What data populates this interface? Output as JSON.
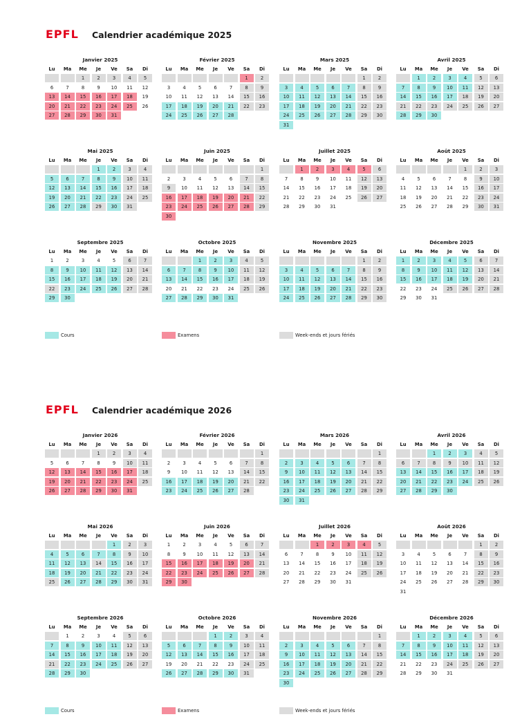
{
  "logo_text": "EPFL",
  "colors": {
    "cours": "#a5e8e5",
    "examens": "#f58d9c",
    "weekend": "#dcdcdc",
    "logo": "#e2001a"
  },
  "weekday_labels": [
    "Lu",
    "Ma",
    "Me",
    "Je",
    "Ve",
    "Sa",
    "Di"
  ],
  "legend": [
    {
      "label": "Cours",
      "type": "c"
    },
    {
      "label": "Examens",
      "type": "e"
    },
    {
      "label": "Week-ends et jours fériés",
      "type": "w"
    }
  ],
  "calendars": [
    {
      "title": "Calendrier académique  2025",
      "months": [
        {
          "name": "Janvier 2025",
          "first_weekday": 3,
          "days": 31,
          "types": {
            "c": [],
            "e": [
              13,
              14,
              15,
              16,
              17,
              18,
              20,
              21,
              22,
              23,
              24,
              25,
              27,
              28,
              29,
              30,
              31
            ],
            "w": [
              1,
              2,
              3,
              4,
              5
            ]
          }
        },
        {
          "name": "Février 2025",
          "first_weekday": 6,
          "days": 28,
          "types": {
            "c": [
              17,
              18,
              19,
              20,
              21,
              24,
              25,
              26,
              27,
              28
            ],
            "e": [
              1
            ],
            "w": [
              2,
              8,
              9,
              15,
              16,
              22,
              23
            ]
          }
        },
        {
          "name": "Mars 2025",
          "first_weekday": 6,
          "days": 31,
          "types": {
            "c": [
              3,
              4,
              5,
              6,
              7,
              10,
              11,
              12,
              13,
              14,
              17,
              18,
              19,
              20,
              21,
              24,
              25,
              26,
              27,
              28,
              31
            ],
            "e": [],
            "w": [
              1,
              2,
              8,
              9,
              15,
              16,
              22,
              23,
              29,
              30
            ]
          }
        },
        {
          "name": "Avril 2025",
          "first_weekday": 2,
          "days": 30,
          "types": {
            "c": [
              1,
              2,
              3,
              4,
              7,
              8,
              9,
              10,
              11,
              14,
              15,
              16,
              17,
              28,
              29,
              30
            ],
            "e": [],
            "w": [
              5,
              6,
              12,
              13,
              18,
              19,
              20,
              21,
              22,
              23,
              24,
              25,
              26,
              27
            ]
          }
        },
        {
          "name": "Mai 2025",
          "first_weekday": 4,
          "days": 31,
          "types": {
            "c": [
              1,
              2,
              5,
              6,
              7,
              8,
              9,
              12,
              13,
              14,
              15,
              16,
              19,
              20,
              21,
              22,
              23,
              26,
              27,
              28,
              30
            ],
            "e": [],
            "w": [
              3,
              4,
              10,
              11,
              17,
              18,
              24,
              25,
              29,
              31
            ]
          }
        },
        {
          "name": "Juin 2025",
          "first_weekday": 7,
          "days": 30,
          "types": {
            "c": [],
            "e": [
              16,
              17,
              18,
              19,
              20,
              21,
              23,
              24,
              25,
              26,
              27,
              28,
              30
            ],
            "w": [
              1,
              7,
              8,
              9,
              14,
              15,
              22,
              29
            ]
          }
        },
        {
          "name": "Juillet 2025",
          "first_weekday": 2,
          "days": 31,
          "types": {
            "c": [],
            "e": [
              1,
              2,
              3,
              4,
              5
            ],
            "w": [
              6,
              12,
              13,
              19,
              20,
              26,
              27
            ]
          }
        },
        {
          "name": "Août 2025",
          "first_weekday": 5,
          "days": 31,
          "types": {
            "c": [],
            "e": [],
            "w": [
              1,
              2,
              3,
              9,
              10,
              16,
              17,
              23,
              24,
              30,
              31
            ]
          }
        },
        {
          "name": "Septembre 2025",
          "first_weekday": 1,
          "days": 30,
          "types": {
            "c": [
              8,
              9,
              10,
              11,
              12,
              15,
              16,
              17,
              18,
              19,
              23,
              24,
              25,
              26,
              29,
              30
            ],
            "e": [],
            "w": [
              6,
              7,
              13,
              14,
              20,
              21,
              22,
              27,
              28
            ]
          }
        },
        {
          "name": "Octobre 2025",
          "first_weekday": 3,
          "days": 31,
          "types": {
            "c": [
              1,
              2,
              3,
              6,
              7,
              8,
              9,
              10,
              13,
              14,
              15,
              16,
              17,
              27,
              28,
              29,
              30,
              31
            ],
            "e": [],
            "w": [
              4,
              5,
              11,
              12,
              18,
              19,
              25,
              26
            ]
          }
        },
        {
          "name": "Novembre 2025",
          "first_weekday": 6,
          "days": 30,
          "types": {
            "c": [
              3,
              4,
              5,
              6,
              7,
              10,
              11,
              12,
              13,
              14,
              17,
              18,
              19,
              20,
              21,
              24,
              25,
              26,
              27,
              28
            ],
            "e": [],
            "w": [
              1,
              2,
              8,
              9,
              15,
              16,
              22,
              23,
              29,
              30
            ]
          }
        },
        {
          "name": "Décembre 2025",
          "first_weekday": 1,
          "days": 31,
          "types": {
            "c": [
              1,
              2,
              3,
              4,
              5,
              8,
              9,
              10,
              11,
              12,
              15,
              16,
              17,
              18,
              19
            ],
            "e": [],
            "w": [
              6,
              7,
              13,
              14,
              20,
              21,
              25,
              26,
              27,
              28
            ]
          }
        }
      ]
    },
    {
      "title": "Calendrier académique  2026",
      "months": [
        {
          "name": "Janvier 2026",
          "first_weekday": 4,
          "days": 31,
          "types": {
            "c": [],
            "e": [
              12,
              13,
              14,
              15,
              16,
              17,
              19,
              20,
              21,
              22,
              23,
              24,
              26,
              27,
              28,
              29,
              30,
              31
            ],
            "w": [
              1,
              2,
              3,
              4,
              10,
              11,
              18,
              25
            ]
          }
        },
        {
          "name": "Février 2026",
          "first_weekday": 7,
          "days": 28,
          "types": {
            "c": [
              16,
              17,
              18,
              19,
              20,
              23,
              24,
              25,
              26,
              27
            ],
            "e": [],
            "w": [
              1,
              7,
              8,
              14,
              15,
              21,
              22,
              28
            ]
          }
        },
        {
          "name": "Mars 2026",
          "first_weekday": 7,
          "days": 31,
          "types": {
            "c": [
              2,
              3,
              4,
              5,
              6,
              9,
              10,
              11,
              12,
              13,
              16,
              17,
              18,
              19,
              20,
              23,
              24,
              25,
              26,
              27,
              30,
              31
            ],
            "e": [],
            "w": [
              1,
              7,
              8,
              14,
              15,
              21,
              22,
              28,
              29
            ]
          }
        },
        {
          "name": "Avril 2026",
          "first_weekday": 3,
          "days": 30,
          "types": {
            "c": [
              1,
              2,
              3,
              13,
              14,
              15,
              16,
              17,
              20,
              21,
              22,
              23,
              24,
              27,
              28,
              29,
              30
            ],
            "e": [],
            "w": [
              4,
              5,
              6,
              7,
              8,
              9,
              10,
              11,
              12,
              18,
              19,
              25,
              26
            ]
          }
        },
        {
          "name": "Mai 2026",
          "first_weekday": 5,
          "days": 31,
          "types": {
            "c": [
              1,
              4,
              5,
              6,
              7,
              8,
              11,
              12,
              13,
              15,
              18,
              19,
              20,
              21,
              22,
              26,
              27,
              28,
              29
            ],
            "e": [],
            "w": [
              2,
              3,
              9,
              10,
              14,
              16,
              17,
              23,
              24,
              25,
              30,
              31
            ]
          }
        },
        {
          "name": "Juin 2026",
          "first_weekday": 1,
          "days": 30,
          "types": {
            "c": [],
            "e": [
              15,
              16,
              17,
              18,
              19,
              20,
              22,
              23,
              24,
              25,
              26,
              27,
              29,
              30
            ],
            "w": [
              6,
              7,
              13,
              14,
              21,
              28
            ]
          }
        },
        {
          "name": "Juillet 2026",
          "first_weekday": 3,
          "days": 31,
          "types": {
            "c": [],
            "e": [
              1,
              2,
              3,
              4
            ],
            "w": [
              5,
              11,
              12,
              18,
              19,
              25,
              26
            ]
          }
        },
        {
          "name": "Août 2026",
          "first_weekday": 6,
          "days": 31,
          "types": {
            "c": [],
            "e": [],
            "w": [
              1,
              2,
              8,
              9,
              15,
              16,
              22,
              23,
              29,
              30
            ]
          }
        },
        {
          "name": "Septembre 2026",
          "first_weekday": 2,
          "days": 30,
          "types": {
            "c": [
              7,
              8,
              9,
              10,
              11,
              14,
              15,
              16,
              17,
              18,
              22,
              23,
              24,
              25,
              28,
              29,
              30
            ],
            "e": [],
            "w": [
              5,
              6,
              12,
              13,
              19,
              20,
              21,
              26,
              27
            ]
          }
        },
        {
          "name": "Octobre 2026",
          "first_weekday": 4,
          "days": 31,
          "types": {
            "c": [
              1,
              2,
              5,
              6,
              7,
              8,
              9,
              12,
              13,
              14,
              15,
              16,
              26,
              27,
              28,
              29,
              30
            ],
            "e": [],
            "w": [
              3,
              4,
              10,
              11,
              17,
              18,
              24,
              25,
              31
            ]
          }
        },
        {
          "name": "Novembre 2026",
          "first_weekday": 7,
          "days": 30,
          "types": {
            "c": [
              2,
              3,
              4,
              5,
              6,
              9,
              10,
              11,
              12,
              13,
              16,
              17,
              18,
              19,
              20,
              23,
              24,
              25,
              26,
              27,
              30
            ],
            "e": [],
            "w": [
              1,
              7,
              8,
              14,
              15,
              21,
              22,
              28,
              29
            ]
          }
        },
        {
          "name": "Décembre 2026",
          "first_weekday": 2,
          "days": 31,
          "types": {
            "c": [
              1,
              2,
              3,
              4,
              7,
              8,
              9,
              10,
              11,
              14,
              15,
              16,
              17,
              18
            ],
            "e": [],
            "w": [
              5,
              6,
              12,
              13,
              19,
              20,
              24,
              25,
              26,
              27
            ]
          }
        }
      ]
    }
  ]
}
